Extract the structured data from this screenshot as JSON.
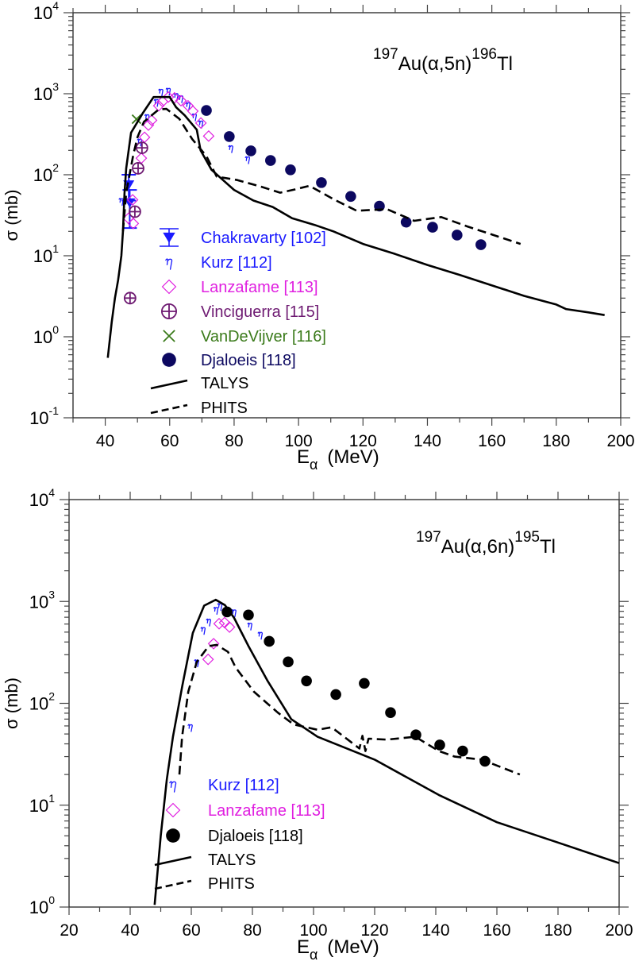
{
  "chart_data": [
    {
      "type": "scatter",
      "title": {
        "pre_sup": "197",
        "mid": "Au(α,5n)",
        "post_sup": "196",
        "tail": "Tl"
      },
      "xlabel": {
        "main": "E",
        "sub": "α",
        "unit": "(MeV)"
      },
      "ylabel": "σ (mb)",
      "xlim": [
        30,
        200
      ],
      "ylim": [
        0.1,
        10000
      ],
      "yscale": "log",
      "xticks": [
        40,
        60,
        80,
        100,
        120,
        140,
        160,
        180,
        200
      ],
      "yticks": [
        {
          "base": "10",
          "exp": "-1"
        },
        {
          "base": "10",
          "exp": "0"
        },
        {
          "base": "10",
          "exp": "1"
        },
        {
          "base": "10",
          "exp": "2"
        },
        {
          "base": "10",
          "exp": "3"
        },
        {
          "base": "10",
          "exp": "4"
        }
      ],
      "legend_position": "center-left",
      "series": [
        {
          "name": "Chakravarty [102]",
          "marker": "triangle-down-errorbar",
          "color": "#1a1aff",
          "points": [
            [
              47.3,
              75,
              48,
              100
            ],
            [
              47.6,
              45,
              22,
              65
            ]
          ]
        },
        {
          "name": "Kurz [112]",
          "marker": "eta",
          "color": "#1a1aff",
          "points": [
            [
              45,
              48
            ],
            [
              50.7,
              260
            ],
            [
              53,
              520
            ],
            [
              55.9,
              800
            ],
            [
              57.3,
              1070
            ],
            [
              59.6,
              1100
            ],
            [
              62,
              950
            ],
            [
              63.5,
              890
            ],
            [
              65.7,
              730
            ],
            [
              67.7,
              530
            ],
            [
              69.7,
              435
            ],
            [
              79,
              215
            ],
            [
              84.2,
              157
            ]
          ]
        },
        {
          "name": "Lanzafame [113]",
          "marker": "diamond",
          "color": "#e020e0",
          "points": [
            [
              47.2,
              29
            ],
            [
              48.5,
              49
            ],
            [
              48.7,
              25
            ],
            [
              51.2,
              160
            ],
            [
              52.2,
              290
            ],
            [
              53.4,
              410
            ],
            [
              54.4,
              470
            ],
            [
              56.6,
              710
            ],
            [
              57.8,
              800
            ],
            [
              59.6,
              910
            ],
            [
              61.5,
              890
            ],
            [
              63.5,
              820
            ],
            [
              65.7,
              710
            ],
            [
              67.2,
              610
            ],
            [
              69.7,
              435
            ],
            [
              72.1,
              300
            ]
          ]
        },
        {
          "name": "Vinciguerra [115]",
          "marker": "circle-plus",
          "color": "#6e1a72",
          "points": [
            [
              47.7,
              3.0
            ],
            [
              49.2,
              35
            ],
            [
              50.2,
              120
            ],
            [
              51.4,
              215
            ]
          ]
        },
        {
          "name": "VanDeVijver [116]",
          "marker": "x",
          "color": "#3a7a1a",
          "points": [
            [
              49.7,
              485
            ]
          ]
        },
        {
          "name": "Djaloeis  [118]",
          "marker": "filled-circle",
          "color": "#0c0860",
          "points": [
            [
              71.4,
              622
            ],
            [
              78.5,
              296
            ],
            [
              85.2,
              197
            ],
            [
              91.3,
              150
            ],
            [
              97.5,
              115
            ],
            [
              107.1,
              80
            ],
            [
              116.2,
              54
            ],
            [
              125.1,
              41
            ],
            [
              133.4,
              26
            ],
            [
              141.6,
              22.5
            ],
            [
              149.2,
              18
            ],
            [
              156.6,
              13.7
            ]
          ]
        },
        {
          "name": "TALYS",
          "marker": "solid-line",
          "color": "#000000",
          "points": [
            [
              40.8,
              0.55
            ],
            [
              42,
              1.5
            ],
            [
              43,
              3
            ],
            [
              44,
              5
            ],
            [
              45,
              10
            ],
            [
              45.5,
              20
            ],
            [
              46,
              60
            ],
            [
              46.5,
              120
            ],
            [
              48,
              330
            ],
            [
              51.7,
              580
            ],
            [
              55,
              910
            ],
            [
              60,
              910
            ],
            [
              62,
              680
            ],
            [
              64.7,
              540
            ],
            [
              68.4,
              360
            ],
            [
              69.6,
              200
            ],
            [
              73,
              115
            ],
            [
              80,
              65
            ],
            [
              86,
              48
            ],
            [
              92,
              40
            ],
            [
              98,
              29
            ],
            [
              105,
              24
            ],
            [
              110.8,
              20
            ],
            [
              120,
              14
            ],
            [
              130,
              10.5
            ],
            [
              140,
              7.7
            ],
            [
              150,
              5.8
            ],
            [
              162.5,
              4
            ],
            [
              170,
              3.2
            ],
            [
              180,
              2.5
            ],
            [
              183,
              2.2
            ],
            [
              190,
              2.0
            ],
            [
              195,
              1.85
            ]
          ]
        },
        {
          "name": "PHITS",
          "marker": "dashed-line",
          "color": "#000000",
          "points": [
            [
              45.5,
              20
            ],
            [
              46.5,
              60
            ],
            [
              48.7,
              176
            ],
            [
              50,
              290
            ],
            [
              52,
              450
            ],
            [
              56.6,
              640
            ],
            [
              59,
              650
            ],
            [
              63,
              490
            ],
            [
              67,
              275
            ],
            [
              71.4,
              170
            ],
            [
              74.6,
              95
            ],
            [
              81,
              86
            ],
            [
              88,
              72
            ],
            [
              94.3,
              60
            ],
            [
              99,
              66
            ],
            [
              103.4,
              73
            ],
            [
              110.8,
              50
            ],
            [
              118,
              36
            ],
            [
              127.5,
              37.5
            ],
            [
              135.9,
              27
            ],
            [
              144.3,
              30
            ],
            [
              152.4,
              23
            ],
            [
              168.9,
              14
            ]
          ]
        }
      ]
    },
    {
      "type": "scatter",
      "title": {
        "pre_sup": "197",
        "mid": "Au(α,6n)",
        "post_sup": "195",
        "tail": "Tl"
      },
      "xlabel": {
        "main": "E",
        "sub": "α",
        "unit": "(MeV)"
      },
      "ylabel": "σ (mb)",
      "xlim": [
        20,
        200
      ],
      "ylim": [
        1,
        10000
      ],
      "yscale": "log",
      "xticks": [
        20,
        40,
        60,
        80,
        100,
        120,
        140,
        160,
        180,
        200
      ],
      "yticks": [
        {
          "base": "10",
          "exp": "0"
        },
        {
          "base": "10",
          "exp": "1"
        },
        {
          "base": "10",
          "exp": "2"
        },
        {
          "base": "10",
          "exp": "3"
        },
        {
          "base": "10",
          "exp": "4"
        }
      ],
      "legend_position": "bottom-left",
      "series": [
        {
          "name": "Kurz [112]",
          "marker": "eta",
          "color": "#1a1aff",
          "points": [
            [
              59.7,
              59
            ],
            [
              61.8,
              255
            ],
            [
              63.9,
              530
            ],
            [
              65.7,
              640
            ],
            [
              68.1,
              835
            ],
            [
              69.4,
              910
            ],
            [
              74,
              790
            ],
            [
              79.2,
              585
            ],
            [
              82.6,
              475
            ]
          ]
        },
        {
          "name": "Lanzafame [113]",
          "marker": "diamond",
          "color": "#e020e0",
          "points": [
            [
              65.5,
              270
            ],
            [
              67.3,
              385
            ],
            [
              69.1,
              605
            ],
            [
              70.9,
              620
            ],
            [
              72.5,
              560
            ]
          ]
        },
        {
          "name": "Djaloeis [118]",
          "marker": "filled-circle",
          "color": "#000000",
          "points": [
            [
              71.7,
              790
            ],
            [
              78.7,
              736
            ],
            [
              85.5,
              406
            ],
            [
              91.7,
              255
            ],
            [
              97.7,
              166
            ],
            [
              107.3,
              122
            ],
            [
              116.6,
              157
            ],
            [
              125.2,
              81
            ],
            [
              133.5,
              49
            ],
            [
              141.3,
              39
            ],
            [
              148.8,
              34
            ],
            [
              156.1,
              27
            ]
          ]
        },
        {
          "name": "TALYS",
          "marker": "solid-line",
          "color": "#000000",
          "points": [
            [
              48,
              1.05
            ],
            [
              50,
              5
            ],
            [
              52,
              18
            ],
            [
              54,
              47
            ],
            [
              57.1,
              150
            ],
            [
              60.5,
              490
            ],
            [
              64.2,
              910
            ],
            [
              68,
              1040
            ],
            [
              71,
              920
            ],
            [
              74,
              690
            ],
            [
              78.7,
              365
            ],
            [
              85,
              165
            ],
            [
              92.7,
              70
            ],
            [
              101.3,
              47
            ],
            [
              120,
              28
            ],
            [
              141,
              12.6
            ],
            [
              160,
              6.8
            ],
            [
              180,
              4.3
            ],
            [
              200,
              2.7
            ]
          ]
        },
        {
          "name": "PHITS",
          "marker": "dashed-line",
          "color": "#000000",
          "points": [
            [
              56.1,
              20
            ],
            [
              57,
              47
            ],
            [
              59,
              130
            ],
            [
              61.8,
              255
            ],
            [
              65.7,
              365
            ],
            [
              68.3,
              375
            ],
            [
              72,
              320
            ],
            [
              74.5,
              225
            ],
            [
              80.5,
              130
            ],
            [
              88.3,
              81
            ],
            [
              93.5,
              62
            ],
            [
              101.3,
              55
            ],
            [
              105.7,
              58
            ],
            [
              107,
              55
            ],
            [
              110,
              47
            ],
            [
              113,
              40
            ],
            [
              115,
              36
            ],
            [
              116,
              48
            ],
            [
              117,
              34
            ],
            [
              118,
              45
            ],
            [
              123.9,
              44
            ],
            [
              133.3,
              47
            ],
            [
              141,
              34
            ],
            [
              146.2,
              30
            ],
            [
              155,
              28
            ],
            [
              167.5,
              20
            ]
          ]
        }
      ]
    }
  ]
}
